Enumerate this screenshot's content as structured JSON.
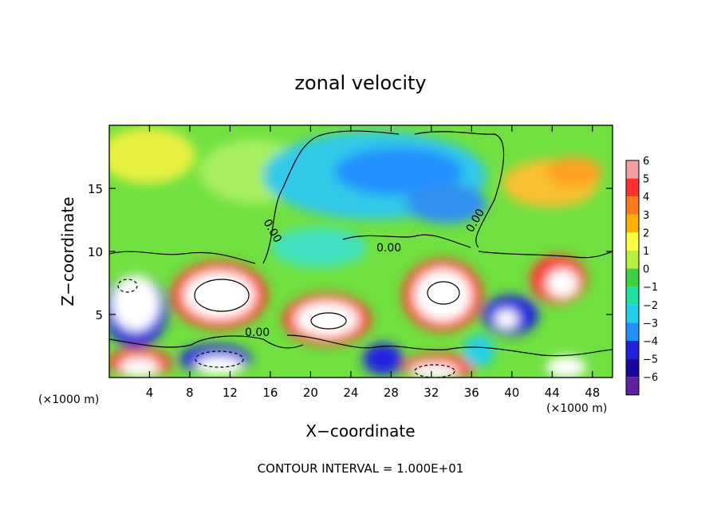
{
  "chart_data": {
    "type": "heatmap",
    "title": "zonal velocity",
    "xlabel": "X−coordinate",
    "ylabel": "Z−coordinate",
    "x_unit_label": "(×1000 m)",
    "z_unit_label": "(×1000 m)",
    "xlim": [
      0,
      50
    ],
    "ylim": [
      0,
      20
    ],
    "x_ticks": [
      4,
      8,
      12,
      16,
      20,
      24,
      28,
      32,
      36,
      40,
      44,
      48
    ],
    "y_ticks": [
      5,
      10,
      15
    ],
    "colorbar": {
      "levels": [
        6,
        5,
        4,
        3,
        2,
        1,
        0,
        -1,
        -2,
        -3,
        -4,
        -5,
        -6
      ],
      "tick_labels": [
        "6",
        "5",
        "4",
        "3",
        "2",
        "1",
        "0",
        "−1",
        "−2",
        "−3",
        "−4",
        "−5",
        "−6"
      ],
      "colors": [
        "#f4a0a0",
        "#ff3030",
        "#ff7a1a",
        "#ffb000",
        "#ffff40",
        "#b8f040",
        "#40d040",
        "#20e0a0",
        "#20d0e8",
        "#2090ff",
        "#2020e0",
        "#1808a0",
        "#6020a0"
      ]
    },
    "contour_labels": [
      "0.00",
      "0.00",
      "0.00",
      "0.00"
    ],
    "annotation": "CONTOUR INTERVAL = 1.000E+01"
  }
}
